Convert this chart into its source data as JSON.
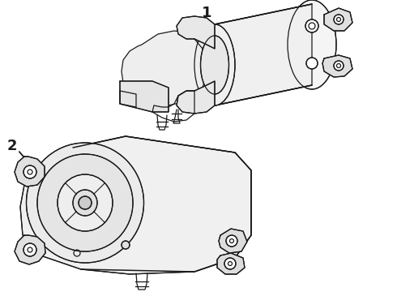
{
  "bg_color": "#ffffff",
  "line_color": "#1a1a1a",
  "label1": "1",
  "label2": "2",
  "figsize": [
    4.9,
    3.6
  ],
  "dpi": 100
}
